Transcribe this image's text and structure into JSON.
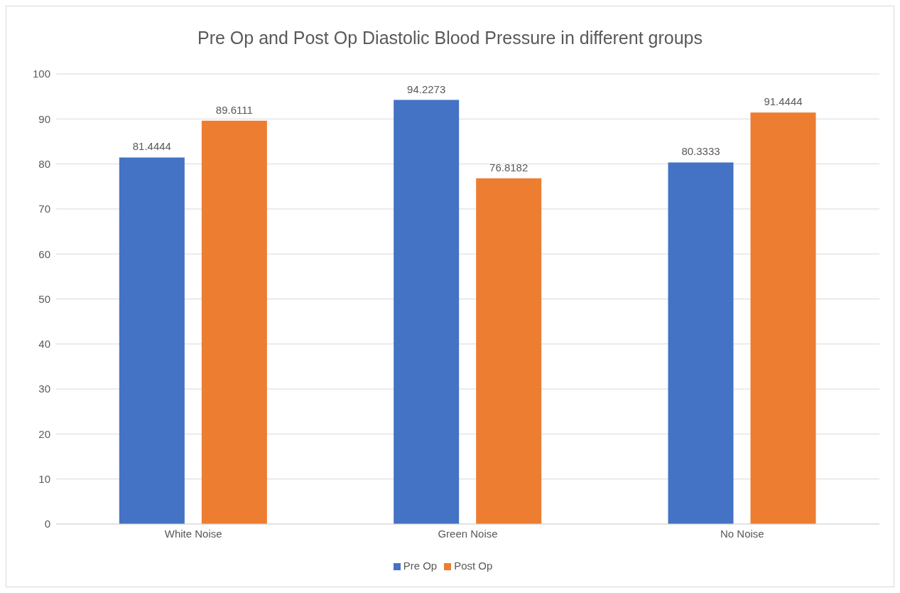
{
  "chart_data": {
    "type": "bar",
    "title": "Pre Op and Post Op Diastolic Blood Pressure in different groups",
    "categories": [
      "White Noise",
      "Green Noise",
      "No Noise"
    ],
    "series": [
      {
        "name": "Pre Op",
        "color": "#4472c4",
        "values": [
          81.4444,
          94.2273,
          80.3333
        ]
      },
      {
        "name": "Post Op",
        "color": "#ed7d31",
        "values": [
          89.6111,
          76.8182,
          91.4444
        ]
      }
    ],
    "ylim": [
      0,
      100
    ],
    "yticks": [
      0,
      10,
      20,
      30,
      40,
      50,
      60,
      70,
      80,
      90,
      100
    ],
    "grid": "y",
    "legend": "bottom",
    "data_labels": true
  }
}
